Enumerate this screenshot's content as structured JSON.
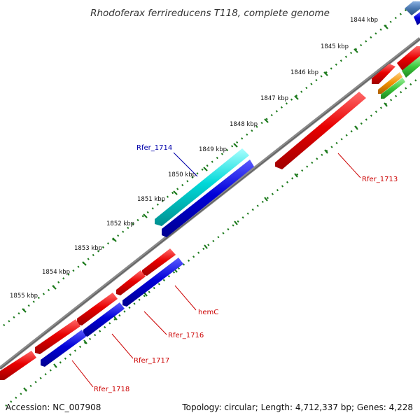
{
  "title": "Rhodoferax ferrireducens T118, complete genome",
  "footer": {
    "accession": "Accession: NC_007908",
    "summary": "Topology: circular; Length: 4,712,337 bp; Genes: 4,228"
  },
  "colors": {
    "backbone": "#8a8a8a",
    "tick": "#1c7a1c",
    "forward_cds": "#e80000",
    "reverse_cds": "#0000d8",
    "highlight_cds": "#00d8d8",
    "rna_green": "#3cc83c",
    "rna_orange": "#f09000",
    "steel": "#4a78b0",
    "label_red": "#cc0000",
    "label_blue": "#0000aa"
  },
  "ticks": [
    {
      "label": "1844 kbp"
    },
    {
      "label": "1845 kbp"
    },
    {
      "label": "1846 kbp"
    },
    {
      "label": "1847 kbp"
    },
    {
      "label": "1848 kbp"
    },
    {
      "label": "1849 kbp"
    },
    {
      "label": "1850 kbp"
    },
    {
      "label": "1851 kbp"
    },
    {
      "label": "1852 kbp"
    },
    {
      "label": "1853 kbp"
    },
    {
      "label": "1854 kbp"
    },
    {
      "label": "1855 kbp"
    }
  ],
  "genes": [
    {
      "name": "Rfer_1713",
      "strand": "outer-red",
      "labeled": true
    },
    {
      "name": "Rfer_1714",
      "strand": "cyan",
      "labeled": true
    },
    {
      "name": "hemC",
      "strand": "red",
      "labeled": true
    },
    {
      "name": "Rfer_1716",
      "strand": "blue",
      "labeled": true
    },
    {
      "name": "Rfer_1717",
      "strand": "blue",
      "labeled": true
    },
    {
      "name": "Rfer_1718",
      "strand": "blue",
      "labeled": true
    }
  ]
}
